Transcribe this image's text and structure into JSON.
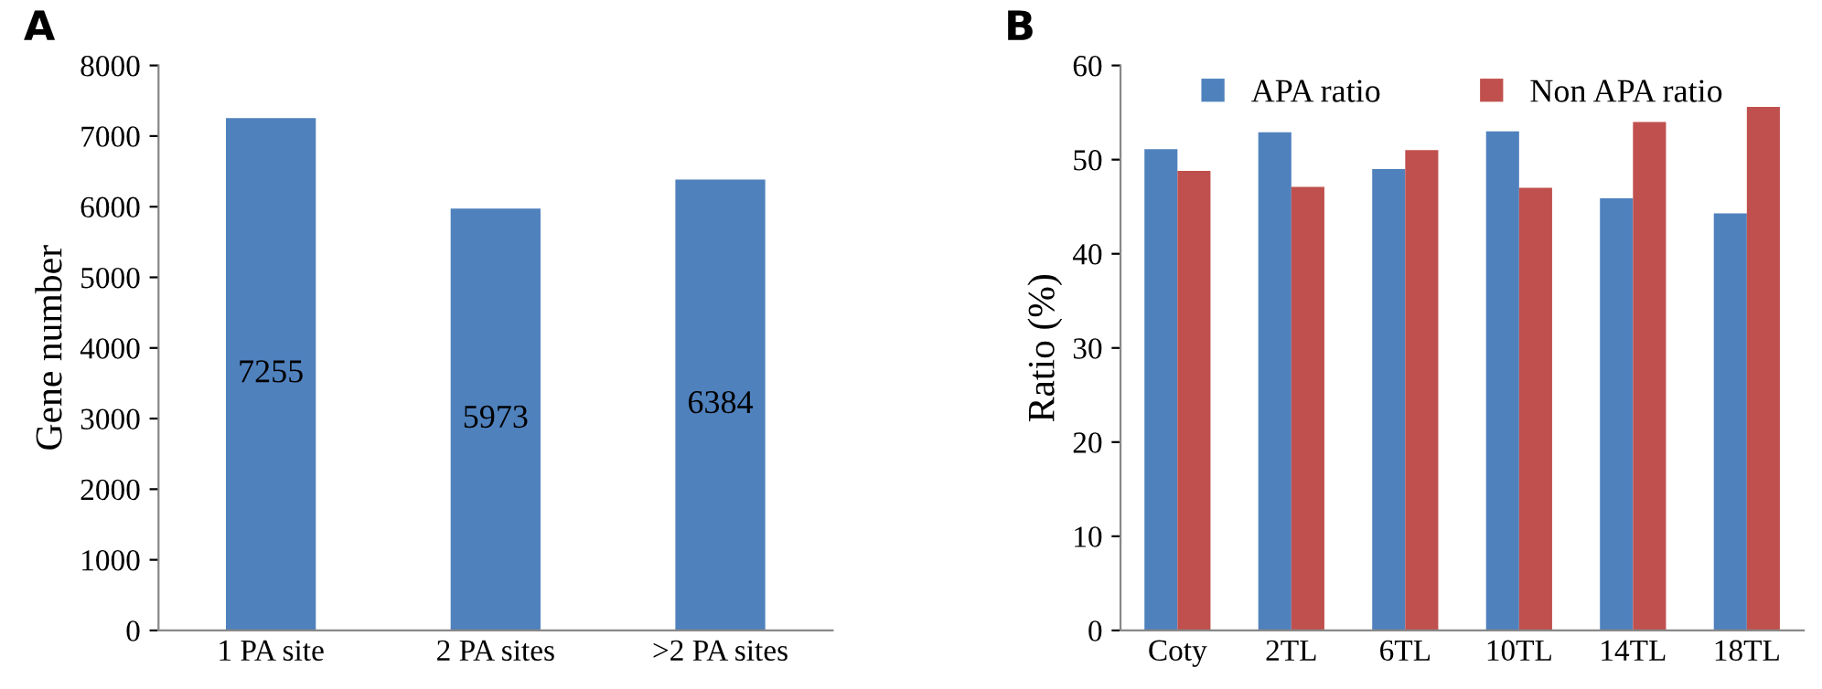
{
  "chart_data": [
    {
      "type": "bar",
      "title": "A",
      "ylabel": "Gene number",
      "categories": [
        "1 PA site",
        "2 PA sites",
        ">2 PA sites"
      ],
      "series": [
        {
          "color": "#4f81bd",
          "values": [
            7255,
            5973,
            6384
          ]
        }
      ],
      "data_labels": true,
      "ylim": [
        0,
        8000
      ],
      "yticks": [
        0,
        1000,
        2000,
        3000,
        4000,
        5000,
        6000,
        7000,
        8000
      ],
      "grid": false,
      "legend": false
    },
    {
      "type": "bar",
      "title": "B",
      "ylabel": "Ratio (%)",
      "categories": [
        "Coty",
        "2TL",
        "6TL",
        "10TL",
        "14TL",
        "18TL"
      ],
      "series": [
        {
          "name": "APA ratio",
          "color": "#4f81bd",
          "values": [
            51.1,
            52.9,
            49.0,
            53.0,
            45.9,
            44.3
          ]
        },
        {
          "name": "Non APA ratio",
          "color": "#c0504d",
          "values": [
            48.8,
            47.1,
            51.0,
            47.0,
            54.0,
            55.6
          ]
        }
      ],
      "ylim": [
        0,
        60
      ],
      "yticks": [
        0,
        10,
        20,
        30,
        40,
        50,
        60
      ],
      "grid": false,
      "legend": "top"
    }
  ]
}
